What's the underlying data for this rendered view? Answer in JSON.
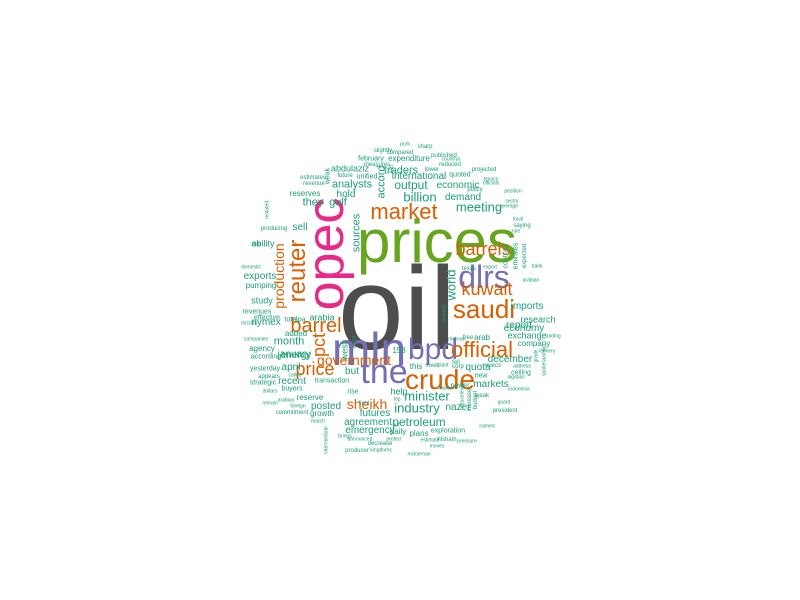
{
  "palette": {
    "dark_gray": "#4d4d4d",
    "olive_green": "#66a61e",
    "magenta": "#e7298a",
    "slate_blue": "#7570b3",
    "burnt_orange": "#d95f02",
    "teal_green": "#1b9e77"
  },
  "words": {
    "oil": "oil",
    "prices": "prices",
    "opec": "opec",
    "mln": "mln",
    "the": "the",
    "dlrs": "dlrs",
    "bpd": "bpd",
    "crude": "crude",
    "saudi": "saudi",
    "reuter": "reuter",
    "market": "market",
    "official": "official",
    "kuwait": "kuwait",
    "barrels": "barrels",
    "barrel": "barrel",
    "price": "price",
    "government": "government",
    "pct": "pct",
    "production": "production",
    "sheikh": "sheikh",
    "minister": "minister",
    "industry": "industry",
    "billion": "billion",
    "meeting": "meeting",
    "world": "world",
    "output": "output",
    "gulf": "gulf",
    "they": "they",
    "sources": "sources",
    "accord": "accord",
    "traders": "traders",
    "international": "international",
    "economic": "economic",
    "demand": "demand",
    "analysts": "analysts",
    "hold": "hold",
    "sell": "sell",
    "month": "month",
    "january": "january",
    "april": "april",
    "energy": "energy",
    "recent": "recent",
    "posted": "posted",
    "agreement": "agreement",
    "emergency": "emergency",
    "futures": "futures",
    "petroleum": "petroleum",
    "nazer": "nazer",
    "markets": "markets",
    "quota": "quota",
    "december": "december",
    "report": "report",
    "economy": "economy",
    "imports": "imports",
    "research": "research",
    "exchange": "exchange",
    "company": "company",
    "abdulaziz": "abdulaziz",
    "expenditure": "expenditure",
    "february": "february",
    "arabia": "arabia",
    "west": "west",
    "but": "but",
    "help": "help",
    "plans": "plans",
    "exploration": "exploration",
    "daily": "daily",
    "nymex": "nymex",
    "exports": "exports",
    "ability": "ability",
    "study": "study",
    "agency": "agency",
    "added": "added",
    "reserve": "reserve",
    "growth": "growth",
    "reserves": "reserves",
    "unified": "unified",
    "quoted": "quoted",
    "reduced": "reduced",
    "spa": "spa",
    "total": "total",
    "effective": "effective",
    "revenues": "revenues",
    "pumping": "pumping",
    "according": "according",
    "yesterday": "yesterday",
    "buyers": "buyers",
    "strategic": "strategic",
    "appears": "appears",
    "revenue": "revenue",
    "estimates": "estimates",
    "future": "future",
    "measures": "measures",
    "weak": "weak",
    "set": "set",
    "compared": "compared",
    "published": "published",
    "slightly": "slightly",
    "pork": "pork",
    "sharp": "sharp",
    "lower": "lower",
    "countrys": "countrys",
    "projected": "projected",
    "texaco": "texaco",
    "officials": "officials",
    "policy": "policy",
    "position": "position",
    "sector": "sector",
    "average": "average",
    "local": "local",
    "saying": "saying",
    "rule": "rule",
    "contract": "contract",
    "emirates": "emirates",
    "expected": "expected",
    "arab": "arab",
    "free": "free",
    "texas": "texas",
    "export": "export",
    "bank": "bank",
    "arabian": "arabian",
    "grade": "grade",
    "corp": "corp",
    "ceiling": "ceiling",
    "address": "address",
    "algabas": "algabas",
    "guard": "guard",
    "president": "president",
    "weak2": "weak",
    "power": "power",
    "opecs": "opecs",
    "new": "new",
    "reduce": "reduce",
    "budget": "budget",
    "increase": "increase",
    "levels": "levels",
    "named": "named",
    "indonesia": "indonesia",
    "refinery": "refinery",
    "trading": "trading",
    "spokeswoman": "spokeswoman",
    "this": "this",
    "meet": "meet",
    "plant": "plant",
    "fell": "fell",
    "rise": "rise",
    "158": "158",
    "mckiernan": "mckiernan",
    "moves": "moves",
    "hisham": "hisham",
    "estimate": "estimate",
    "decrease": "decrease",
    "kingdoms": "kingdoms",
    "producer": "producer",
    "intermediate": "intermediate",
    "march": "march",
    "commitment": "commitment",
    "foreign": "foreign",
    "arabias": "arabias",
    "called": "called",
    "remain": "remain",
    "dollars": "dollars",
    "companies": "companies",
    "mizrahi": "mizrahi",
    "domestic": "domestic",
    "ship": "ship",
    "producing": "producing",
    "restated": "restated",
    "brings": "brings",
    "announced": "announced",
    "protect": "protect",
    "cut": "cut",
    "fixed": "fixed",
    "however": "however",
    "pressure": "pressure",
    "top": "top",
    "years": "years",
    "pipeline": "pipeline",
    "mideast": "mideast",
    "transaction": "transaction"
  }
}
